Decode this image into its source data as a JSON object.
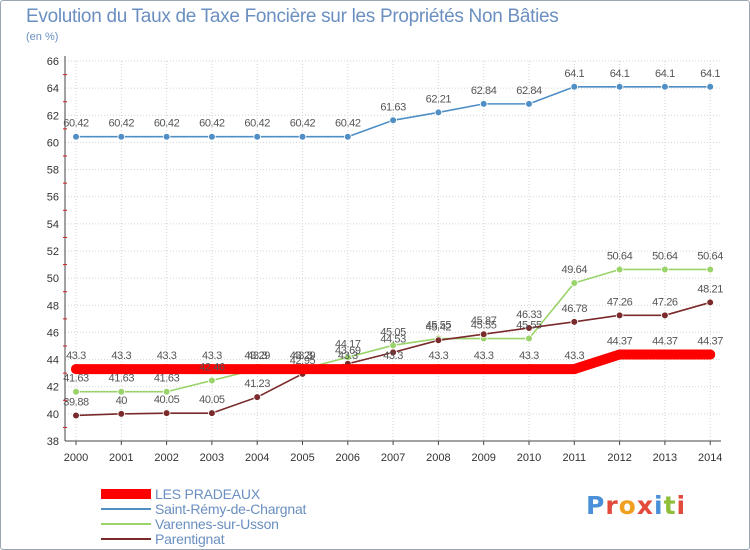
{
  "title": "Evolution du Taux de Taxe Foncière sur les Propriétés Non Bâties",
  "unit_label": "(en %)",
  "brand": "Proxiti",
  "colors": {
    "background": "#ffffff",
    "grid": "#d3d3d3",
    "text": "#6a8fc0"
  },
  "chart_data": {
    "type": "line",
    "title": "Evolution du Taux de Taxe Foncière sur les Propriétés Non Bâties",
    "ylabel": "(en %)",
    "xlabel": "",
    "x": [
      "2000",
      "2001",
      "2002",
      "2003",
      "2004",
      "2005",
      "2006",
      "2007",
      "2008",
      "2009",
      "2010",
      "2011",
      "2012",
      "2013",
      "2014"
    ],
    "ylim": [
      38,
      66
    ],
    "yticks": [
      38,
      40,
      42,
      44,
      46,
      48,
      50,
      52,
      54,
      56,
      58,
      60,
      62,
      64,
      66
    ],
    "grid": true,
    "legend": "bottom-left",
    "series": [
      {
        "name": "LES PRADEAUX",
        "color": "#ff0000",
        "values": [
          43.3,
          43.3,
          43.3,
          43.3,
          43.3,
          43.3,
          43.3,
          43.3,
          43.3,
          43.3,
          43.3,
          43.3,
          44.37,
          44.37,
          44.37
        ],
        "labels": [
          "43.3",
          "43.3",
          "43.3",
          "43.3",
          "43.3",
          "43.3",
          "43.3",
          "43.3",
          "43.3",
          "43.3",
          "43.3",
          "43.3",
          "44.37",
          "44.37",
          "44.37"
        ]
      },
      {
        "name": "Saint-Rémy-de-Chargnat",
        "color": "#4f8fc6",
        "values": [
          60.42,
          60.42,
          60.42,
          60.42,
          60.42,
          60.42,
          60.42,
          61.63,
          62.21,
          62.84,
          62.84,
          64.1,
          64.1,
          64.1,
          64.1
        ],
        "labels": [
          "60.42",
          "60.42",
          "60.42",
          "60.42",
          "60.42",
          "60.42",
          "60.42",
          "61.63",
          "62.21",
          "62.84",
          "62.84",
          "64.1",
          "64.1",
          "64.1",
          "64.1"
        ]
      },
      {
        "name": "Varennes-sur-Usson",
        "color": "#9ad36a",
        "values": [
          41.63,
          41.63,
          41.63,
          42.46,
          43.29,
          43.29,
          44.17,
          45.05,
          45.55,
          45.55,
          45.55,
          49.64,
          50.64,
          50.64,
          50.64
        ],
        "labels": [
          "41.63",
          "41.63",
          "41.63",
          "42.46",
          "43.29",
          "43.29",
          "44.17",
          "45.05",
          "45.55",
          "45.55",
          "45.55",
          "49.64",
          "50.64",
          "50.64",
          "50.64"
        ]
      },
      {
        "name": "Parentignat",
        "color": "#7a2a2a",
        "values": [
          39.88,
          40,
          40.05,
          40.05,
          41.23,
          42.95,
          43.69,
          44.53,
          45.42,
          45.87,
          46.33,
          46.78,
          47.26,
          47.26,
          48.21
        ],
        "labels": [
          "39.88",
          "40",
          "40.05",
          "40.05",
          "41.23",
          "42.95",
          "43.69",
          "44.53",
          "45.42",
          "45.87",
          "46.33",
          "46.78",
          "47.26",
          "47.26",
          "48.21"
        ]
      }
    ]
  }
}
